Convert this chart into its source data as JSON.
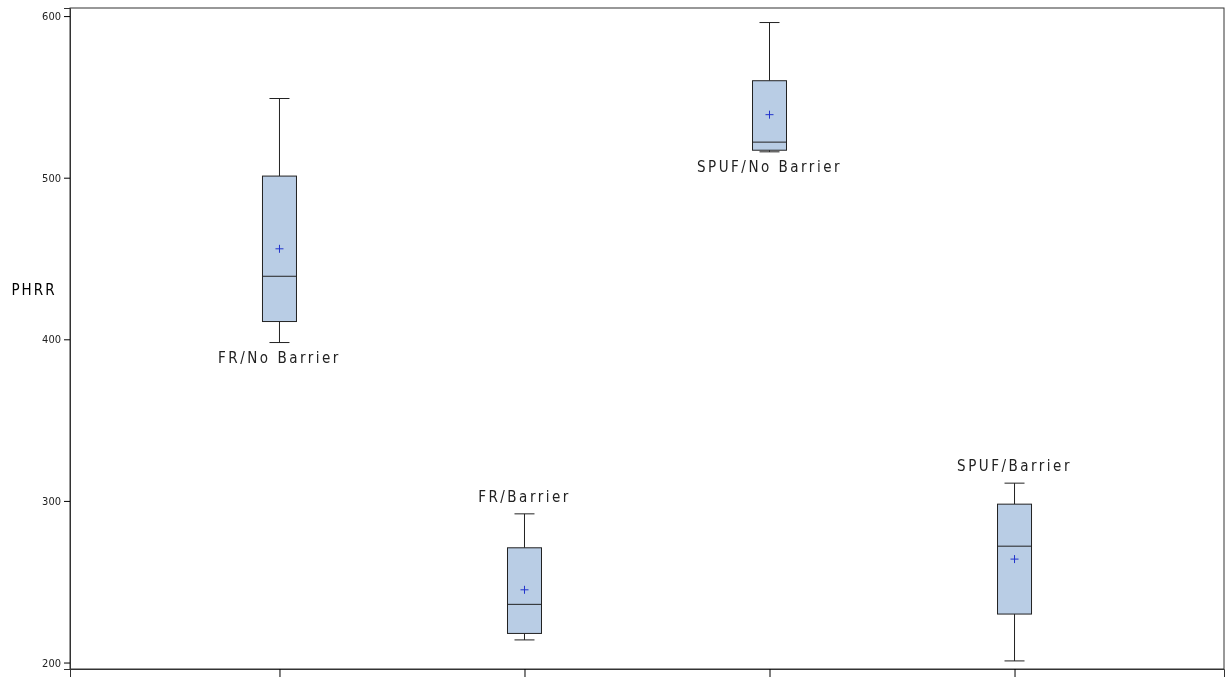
{
  "chart_data": {
    "type": "box",
    "ylabel": "PHRR",
    "categories": [
      "FR/No Barrier",
      "FR/Barrier",
      "SPUF/No Barrier",
      "SPUF/Barrier"
    ],
    "boxes": [
      {
        "low": 398,
        "q1": 411,
        "median": 439,
        "q3": 501,
        "high": 549,
        "mean": 456
      },
      {
        "low": 214,
        "q1": 218,
        "median": 236,
        "q3": 271,
        "high": 292,
        "mean": 245
      },
      {
        "low": 516,
        "q1": 517,
        "median": 522,
        "q3": 560,
        "high": 596,
        "mean": 539
      },
      {
        "low": 201,
        "q1": 230,
        "median": 272,
        "q3": 298,
        "high": 311,
        "mean": 264
      }
    ],
    "color": "#b9cde5",
    "ylim": [
      196,
      605
    ],
    "yticks": [
      200,
      300,
      400,
      500,
      600
    ],
    "tick_labels": "y",
    "grid": false
  }
}
